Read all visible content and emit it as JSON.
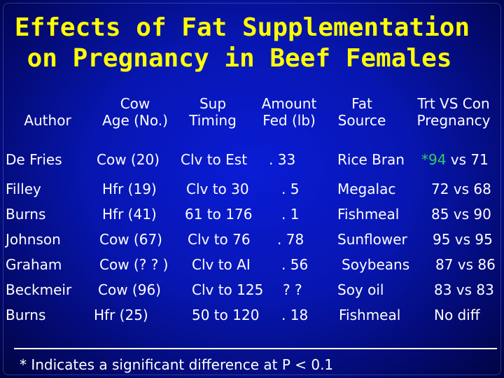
{
  "title": {
    "line1": "Effects of Fat Supplementation",
    "line2": "on Pregnancy in Beef Females"
  },
  "headers": {
    "author": "Author",
    "cow_age_l1": "Cow",
    "cow_age_l2": "Age (No.)",
    "sup_timing_l1": "Sup",
    "sup_timing_l2": "Timing",
    "amount_fed_l1": "Amount",
    "amount_fed_l2": "Fed (lb)",
    "fat_source_l1": "Fat",
    "fat_source_l2": "Source",
    "trt_vs_con_l1": "Trt VS Con",
    "trt_vs_con_l2": "Pregnancy"
  },
  "rows": [
    {
      "author": "De Fries",
      "cow_age": "Cow (20)",
      "timing": "Clv to Est",
      "amount": ". 33",
      "source": "Rice Bran",
      "result_sig": "*94",
      "result_rest": " vs 71"
    },
    {
      "author": "Filley",
      "cow_age": "Hfr (19)",
      "timing": "Clv to 30",
      "amount": ". 5",
      "source": "Megalac",
      "result_sig": "",
      "result_rest": "72 vs 68"
    },
    {
      "author": "Burns",
      "cow_age": "Hfr (41)",
      "timing": "61 to 176",
      "amount": ". 1",
      "source": "Fishmeal",
      "result_sig": "",
      "result_rest": "85 vs 90"
    },
    {
      "author": "Johnson",
      "cow_age": "Cow (67)",
      "timing": "Clv to 76",
      "amount": ". 78",
      "source": "Sunflower",
      "result_sig": "",
      "result_rest": "95 vs 95"
    },
    {
      "author": "Graham",
      "cow_age": "Cow (? ? )",
      "timing": "Clv to AI",
      "amount": ". 56",
      "source": "Soybeans",
      "result_sig": "",
      "result_rest": "87 vs 86"
    },
    {
      "author": "Beckmeir",
      "cow_age": "Cow (96)",
      "timing": "Clv to 125",
      "amount": "? ?",
      "source": "Soy oil",
      "result_sig": "",
      "result_rest": "83 vs 83"
    },
    {
      "author": "Burns",
      "cow_age": "Hfr  (25)",
      "timing": "50 to 120",
      "amount": ". 18",
      "source": "Fishmeal",
      "result_sig": "",
      "result_rest": "No diff"
    }
  ],
  "footnote": "* Indicates a significant difference at P < 0.1",
  "colors": {
    "background": "#0716b0",
    "title": "#ffff00",
    "text": "#ffffff",
    "significant": "#33cc66"
  }
}
